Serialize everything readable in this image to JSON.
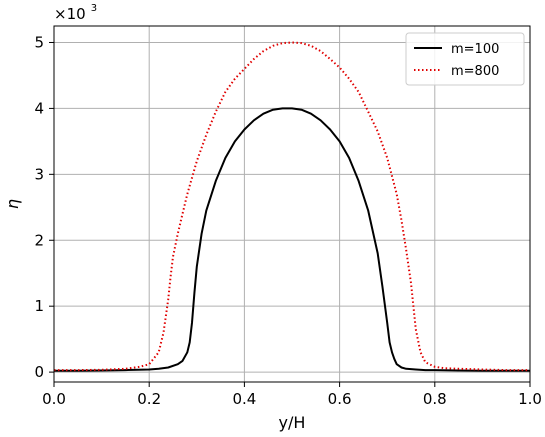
{
  "chart_data": {
    "type": "line",
    "title": "",
    "xlabel": "y/H",
    "ylabel": "η",
    "y_scale_note": {
      "base": "×10",
      "exponent": "3"
    },
    "xlim": [
      0.0,
      1.0
    ],
    "ylim": [
      -0.15,
      5.25
    ],
    "xticks": [
      "0.0",
      "0.2",
      "0.4",
      "0.6",
      "0.8",
      "1.0"
    ],
    "yticks": [
      "0",
      "1",
      "2",
      "3",
      "4",
      "5"
    ],
    "grid": true,
    "legend_position": "top-right",
    "series": [
      {
        "name": "m=100",
        "color": "#000000",
        "style": "solid",
        "x": [
          0.0,
          0.05,
          0.1,
          0.15,
          0.2,
          0.22,
          0.24,
          0.26,
          0.27,
          0.28,
          0.285,
          0.29,
          0.295,
          0.3,
          0.31,
          0.32,
          0.34,
          0.36,
          0.38,
          0.4,
          0.42,
          0.44,
          0.46,
          0.48,
          0.5,
          0.52,
          0.54,
          0.56,
          0.58,
          0.6,
          0.62,
          0.64,
          0.66,
          0.68,
          0.69,
          0.7,
          0.705,
          0.71,
          0.715,
          0.72,
          0.73,
          0.74,
          0.76,
          0.78,
          0.8,
          0.85,
          0.9,
          0.95,
          1.0
        ],
        "values": [
          0.02,
          0.02,
          0.025,
          0.03,
          0.04,
          0.05,
          0.07,
          0.12,
          0.17,
          0.3,
          0.45,
          0.75,
          1.2,
          1.6,
          2.1,
          2.45,
          2.9,
          3.25,
          3.5,
          3.68,
          3.82,
          3.92,
          3.98,
          4.0,
          4.0,
          3.98,
          3.92,
          3.82,
          3.68,
          3.5,
          3.25,
          2.9,
          2.45,
          1.8,
          1.3,
          0.75,
          0.45,
          0.3,
          0.2,
          0.12,
          0.07,
          0.05,
          0.04,
          0.03,
          0.03,
          0.025,
          0.02,
          0.02,
          0.02
        ]
      },
      {
        "name": "m=800",
        "color": "#e00000",
        "style": "dotted",
        "x": [
          0.0,
          0.05,
          0.1,
          0.15,
          0.18,
          0.2,
          0.22,
          0.23,
          0.24,
          0.245,
          0.25,
          0.26,
          0.27,
          0.28,
          0.3,
          0.32,
          0.34,
          0.36,
          0.38,
          0.4,
          0.42,
          0.44,
          0.46,
          0.48,
          0.5,
          0.52,
          0.54,
          0.56,
          0.58,
          0.6,
          0.62,
          0.64,
          0.66,
          0.68,
          0.7,
          0.72,
          0.73,
          0.74,
          0.75,
          0.755,
          0.76,
          0.77,
          0.78,
          0.8,
          0.82,
          0.85,
          0.9,
          0.95,
          1.0
        ],
        "values": [
          0.03,
          0.03,
          0.035,
          0.05,
          0.08,
          0.12,
          0.3,
          0.6,
          1.1,
          1.45,
          1.75,
          2.1,
          2.4,
          2.7,
          3.2,
          3.6,
          3.95,
          4.25,
          4.45,
          4.6,
          4.75,
          4.87,
          4.95,
          4.99,
          5.0,
          4.99,
          4.95,
          4.87,
          4.75,
          4.62,
          4.45,
          4.25,
          3.95,
          3.65,
          3.25,
          2.7,
          2.3,
          1.85,
          1.35,
          1.0,
          0.65,
          0.3,
          0.15,
          0.08,
          0.06,
          0.05,
          0.04,
          0.03,
          0.03
        ]
      }
    ]
  }
}
